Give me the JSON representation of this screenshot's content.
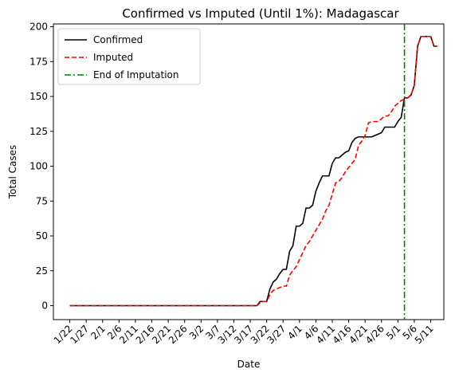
{
  "chart_data": {
    "type": "line",
    "title": "Confirmed vs Imputed (Until 1%): Madagascar",
    "xlabel": "Date",
    "ylabel": "Total Cases",
    "x_start": "2020-01-22",
    "x_ticks": [
      "1/22",
      "1/27",
      "2/1",
      "2/6",
      "2/11",
      "2/16",
      "2/21",
      "2/26",
      "3/2",
      "3/7",
      "3/12",
      "3/17",
      "3/22",
      "3/27",
      "4/1",
      "4/6",
      "4/11",
      "4/16",
      "4/21",
      "4/26",
      "5/1",
      "5/6",
      "5/11"
    ],
    "y_ticks": [
      0,
      25,
      50,
      75,
      100,
      125,
      150,
      175,
      200
    ],
    "xlim": [
      "2020-01-17",
      "2020-05-15"
    ],
    "ylim": [
      -10,
      202
    ],
    "legend_position": "upper-left",
    "grid": false,
    "series": [
      {
        "name": "Confirmed",
        "color": "#000000",
        "style": "solid",
        "points": [
          [
            "2020-01-22",
            0
          ],
          [
            "2020-03-19",
            0
          ],
          [
            "2020-03-20",
            3
          ],
          [
            "2020-03-21",
            3
          ],
          [
            "2020-03-22",
            3
          ],
          [
            "2020-03-23",
            12
          ],
          [
            "2020-03-24",
            17
          ],
          [
            "2020-03-25",
            19
          ],
          [
            "2020-03-26",
            23
          ],
          [
            "2020-03-27",
            26
          ],
          [
            "2020-03-28",
            26
          ],
          [
            "2020-03-29",
            39
          ],
          [
            "2020-03-30",
            43
          ],
          [
            "2020-03-31",
            57
          ],
          [
            "2020-04-01",
            57
          ],
          [
            "2020-04-02",
            59
          ],
          [
            "2020-04-03",
            70
          ],
          [
            "2020-04-04",
            70
          ],
          [
            "2020-04-05",
            72
          ],
          [
            "2020-04-06",
            82
          ],
          [
            "2020-04-07",
            88
          ],
          [
            "2020-04-08",
            93
          ],
          [
            "2020-04-09",
            93
          ],
          [
            "2020-04-10",
            93
          ],
          [
            "2020-04-11",
            102
          ],
          [
            "2020-04-12",
            106
          ],
          [
            "2020-04-13",
            106
          ],
          [
            "2020-04-14",
            108
          ],
          [
            "2020-04-15",
            110
          ],
          [
            "2020-04-16",
            111
          ],
          [
            "2020-04-17",
            117
          ],
          [
            "2020-04-18",
            120
          ],
          [
            "2020-04-19",
            121
          ],
          [
            "2020-04-20",
            121
          ],
          [
            "2020-04-21",
            121
          ],
          [
            "2020-04-22",
            121
          ],
          [
            "2020-04-23",
            121
          ],
          [
            "2020-04-24",
            122
          ],
          [
            "2020-04-25",
            123
          ],
          [
            "2020-04-26",
            124
          ],
          [
            "2020-04-27",
            128
          ],
          [
            "2020-04-28",
            128
          ],
          [
            "2020-04-29",
            128
          ],
          [
            "2020-04-30",
            128
          ],
          [
            "2020-05-01",
            132
          ],
          [
            "2020-05-02",
            135
          ],
          [
            "2020-05-03",
            149
          ],
          [
            "2020-05-04",
            149
          ],
          [
            "2020-05-05",
            151
          ],
          [
            "2020-05-06",
            158
          ],
          [
            "2020-05-07",
            186
          ],
          [
            "2020-05-08",
            193
          ],
          [
            "2020-05-09",
            193
          ],
          [
            "2020-05-10",
            193
          ],
          [
            "2020-05-11",
            193
          ],
          [
            "2020-05-12",
            186
          ],
          [
            "2020-05-13",
            186
          ]
        ]
      },
      {
        "name": "Imputed",
        "color": "#ff0000",
        "style": "dashed",
        "points": [
          [
            "2020-01-22",
            0
          ],
          [
            "2020-03-19",
            0
          ],
          [
            "2020-03-20",
            2
          ],
          [
            "2020-03-21",
            3
          ],
          [
            "2020-03-22",
            3
          ],
          [
            "2020-03-23",
            8
          ],
          [
            "2020-03-24",
            11
          ],
          [
            "2020-03-25",
            12
          ],
          [
            "2020-03-26",
            13
          ],
          [
            "2020-03-27",
            14
          ],
          [
            "2020-03-28",
            14
          ],
          [
            "2020-03-29",
            22
          ],
          [
            "2020-03-30",
            25
          ],
          [
            "2020-03-31",
            28
          ],
          [
            "2020-04-01",
            33
          ],
          [
            "2020-04-02",
            38
          ],
          [
            "2020-04-03",
            43
          ],
          [
            "2020-04-04",
            46
          ],
          [
            "2020-04-05",
            50
          ],
          [
            "2020-04-06",
            54
          ],
          [
            "2020-04-07",
            58
          ],
          [
            "2020-04-08",
            62
          ],
          [
            "2020-04-09",
            68
          ],
          [
            "2020-04-10",
            72
          ],
          [
            "2020-04-11",
            80
          ],
          [
            "2020-04-12",
            88
          ],
          [
            "2020-04-13",
            89
          ],
          [
            "2020-04-14",
            92
          ],
          [
            "2020-04-15",
            96
          ],
          [
            "2020-04-16",
            99
          ],
          [
            "2020-04-17",
            102
          ],
          [
            "2020-04-18",
            105
          ],
          [
            "2020-04-19",
            115
          ],
          [
            "2020-04-20",
            118
          ],
          [
            "2020-04-21",
            122
          ],
          [
            "2020-04-22",
            131
          ],
          [
            "2020-04-23",
            132
          ],
          [
            "2020-04-24",
            132
          ],
          [
            "2020-04-25",
            132
          ],
          [
            "2020-04-26",
            134
          ],
          [
            "2020-04-27",
            136
          ],
          [
            "2020-04-28",
            136
          ],
          [
            "2020-04-29",
            139
          ],
          [
            "2020-04-30",
            143
          ],
          [
            "2020-05-01",
            145
          ],
          [
            "2020-05-02",
            147
          ],
          [
            "2020-05-03",
            148
          ],
          [
            "2020-05-04",
            149
          ],
          [
            "2020-05-05",
            151
          ],
          [
            "2020-05-06",
            158
          ],
          [
            "2020-05-07",
            186
          ],
          [
            "2020-05-08",
            193
          ],
          [
            "2020-05-09",
            193
          ],
          [
            "2020-05-10",
            193
          ],
          [
            "2020-05-11",
            193
          ],
          [
            "2020-05-12",
            186
          ],
          [
            "2020-05-13",
            186
          ]
        ]
      },
      {
        "name": "End of Imputation",
        "color": "#008000",
        "style": "dashdot",
        "vertical_line_x": "2020-05-03"
      }
    ]
  }
}
